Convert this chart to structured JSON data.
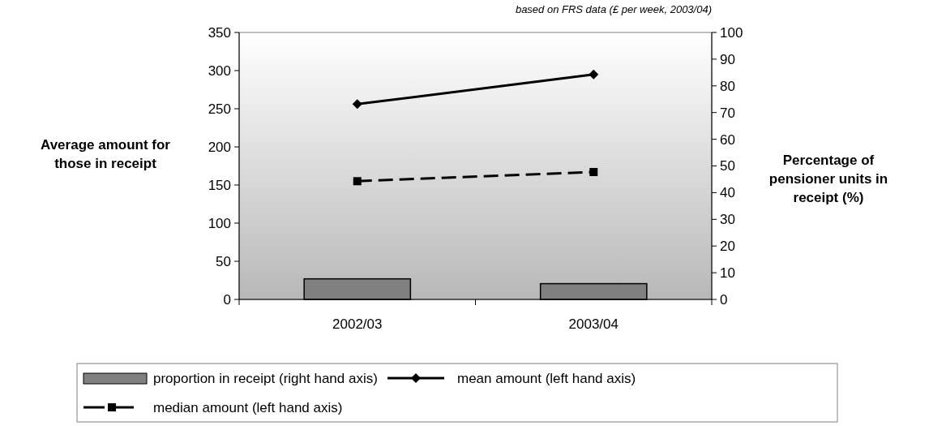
{
  "chart_data": {
    "type": "bar",
    "categories": [
      "2002/03",
      "2003/04"
    ],
    "ylabel": "Average amount for those in receipt",
    "y2label": "Percentage of pensioner units in receipt (%)",
    "annotations": [
      "based on FRS data (£ per week, 2003/04)"
    ],
    "ylim": [
      0,
      350
    ],
    "yticks": [
      0,
      50,
      100,
      150,
      200,
      250,
      300,
      350
    ],
    "y2lim": [
      0,
      100
    ],
    "y2ticks": [
      0,
      10,
      20,
      30,
      40,
      50,
      60,
      70,
      80,
      90,
      100
    ],
    "legend": "bottom",
    "grid": false,
    "series": [
      {
        "name": "proportion in receipt (right hand axis)",
        "axis": "y2",
        "color": "#808080",
        "values": [
          7.7,
          5.9
        ]
      },
      {
        "name": "mean amount (left hand axis)",
        "type": "line",
        "color": "#000000",
        "marker": "diamond",
        "line_style": "solid",
        "values": [
          256,
          295
        ]
      },
      {
        "name": "median amount (left hand axis)",
        "type": "line",
        "color": "#000000",
        "marker": "square",
        "line_style": "dashed",
        "values": [
          155,
          167
        ]
      }
    ]
  }
}
